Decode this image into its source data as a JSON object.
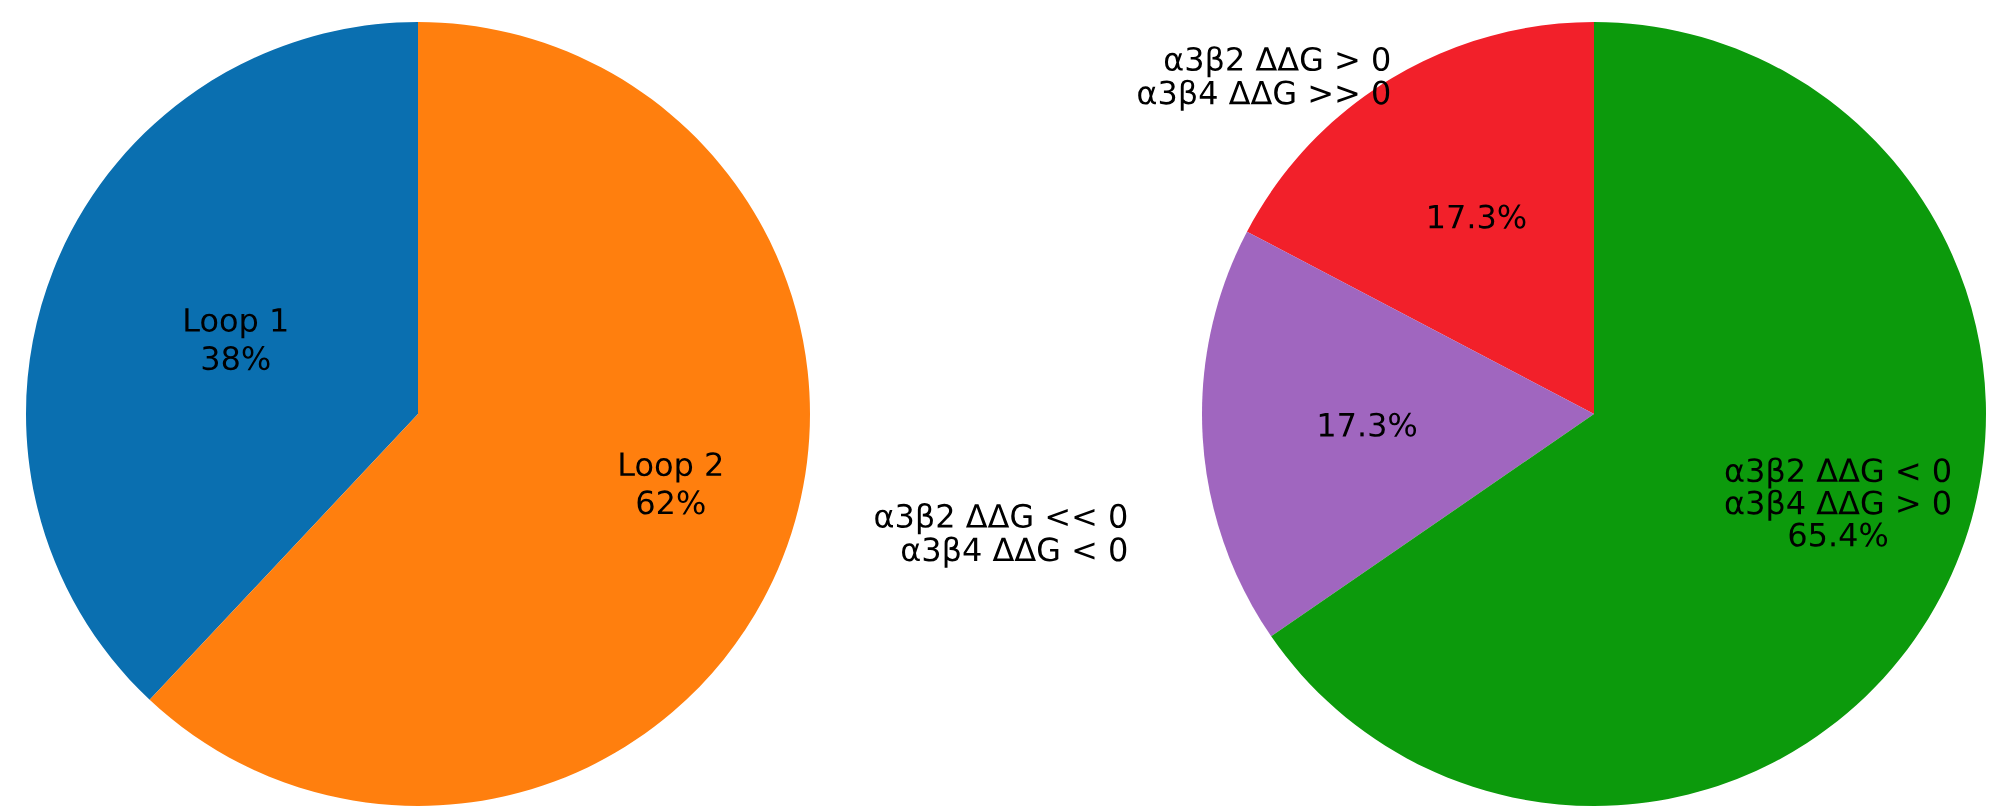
{
  "chart_data": [
    {
      "type": "pie",
      "categories": [
        "Loop 1",
        "Loop 2"
      ],
      "values": [
        38,
        62
      ],
      "colors": [
        "#0a6fb0",
        "#ff7f0e"
      ],
      "value_labels": [
        "38%",
        "62%"
      ]
    },
    {
      "type": "pie",
      "categories": [
        "α3β2 ΔΔG > 0\nα3β4 ΔΔG >> 0",
        "α3β2 ΔΔG << 0\nα3β4 ΔΔG < 0",
        "α3β2 ΔΔG < 0\nα3β4 ΔΔG > 0"
      ],
      "values": [
        17.3,
        17.3,
        65.4
      ],
      "colors": [
        "#f2202a",
        "#a066bf",
        "#0c9a0c"
      ],
      "value_labels": [
        "17.3%",
        "17.3%",
        "65.4%"
      ]
    }
  ]
}
